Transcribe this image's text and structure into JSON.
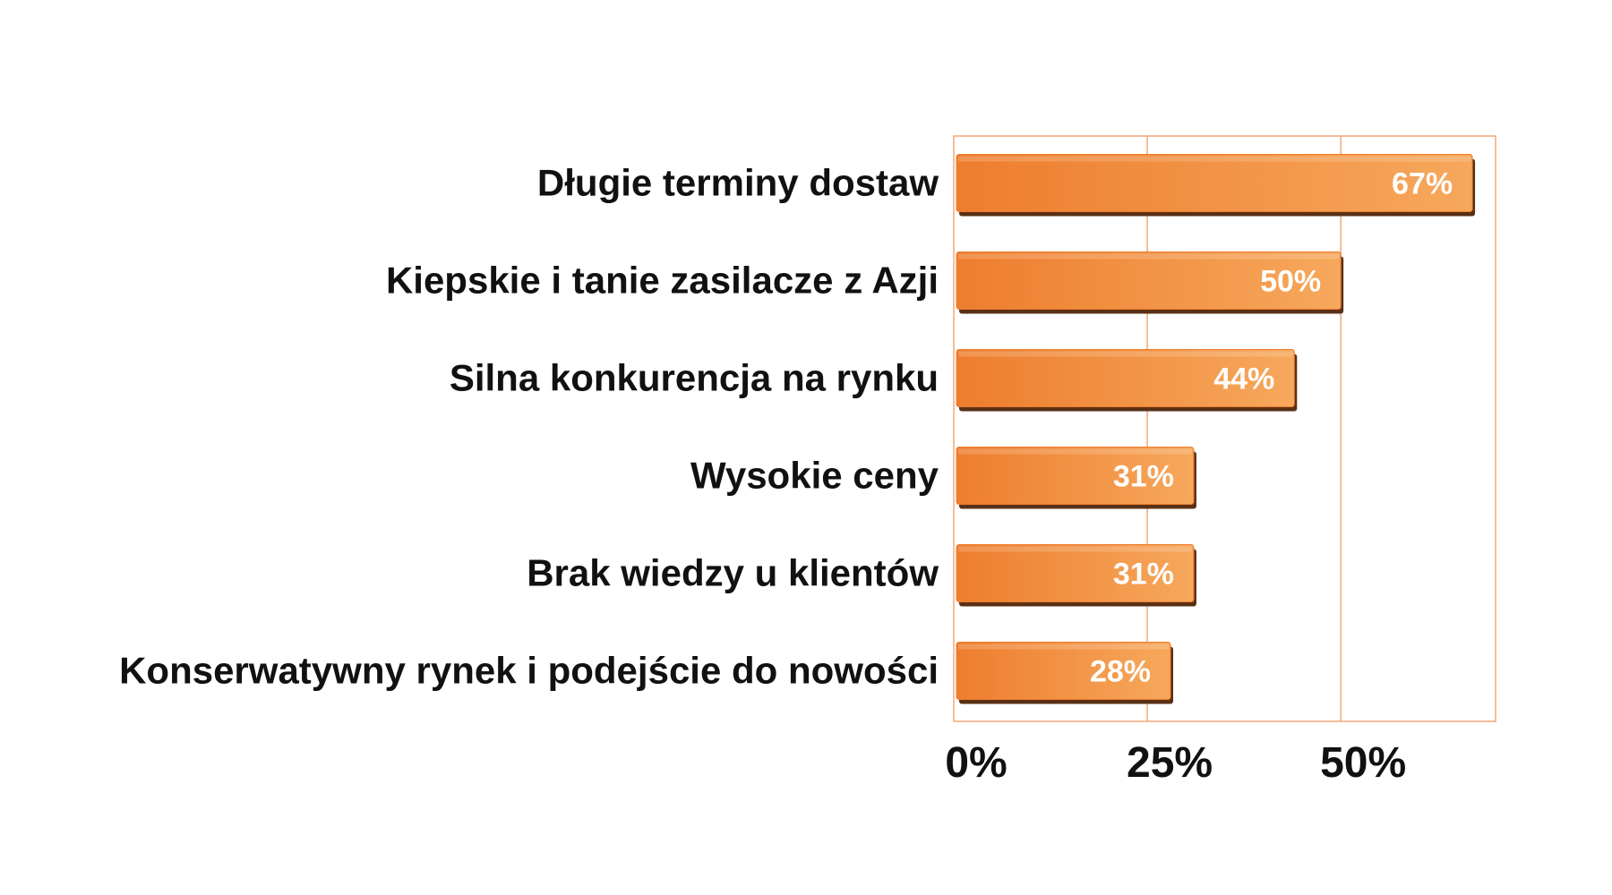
{
  "chart_data": {
    "type": "bar",
    "orientation": "horizontal",
    "categories": [
      "Długie terminy dostaw",
      "Kiepskie i tanie zasilacze z Azji",
      "Silna konkurencja na rynku",
      "Wysokie ceny",
      "Brak wiedzy u klientów",
      "Konserwatywny rynek i podejście do nowości"
    ],
    "values": [
      67,
      50,
      44,
      31,
      31,
      28
    ],
    "data_labels": [
      "67%",
      "50%",
      "44%",
      "31%",
      "31%",
      "28%"
    ],
    "xticks": [
      0,
      25,
      50
    ],
    "xtick_labels": [
      "0%",
      "25%",
      "50%"
    ],
    "xlim": [
      0,
      70
    ],
    "grid": true,
    "legend": "none",
    "title": "",
    "xlabel": "",
    "ylabel": "",
    "colors": {
      "bar_light": "#f6a85c",
      "bar_dark": "#ee7d2e",
      "bar_shadow": "#5a3015",
      "frame": "#f0a878",
      "grid": "#f0a878"
    }
  }
}
